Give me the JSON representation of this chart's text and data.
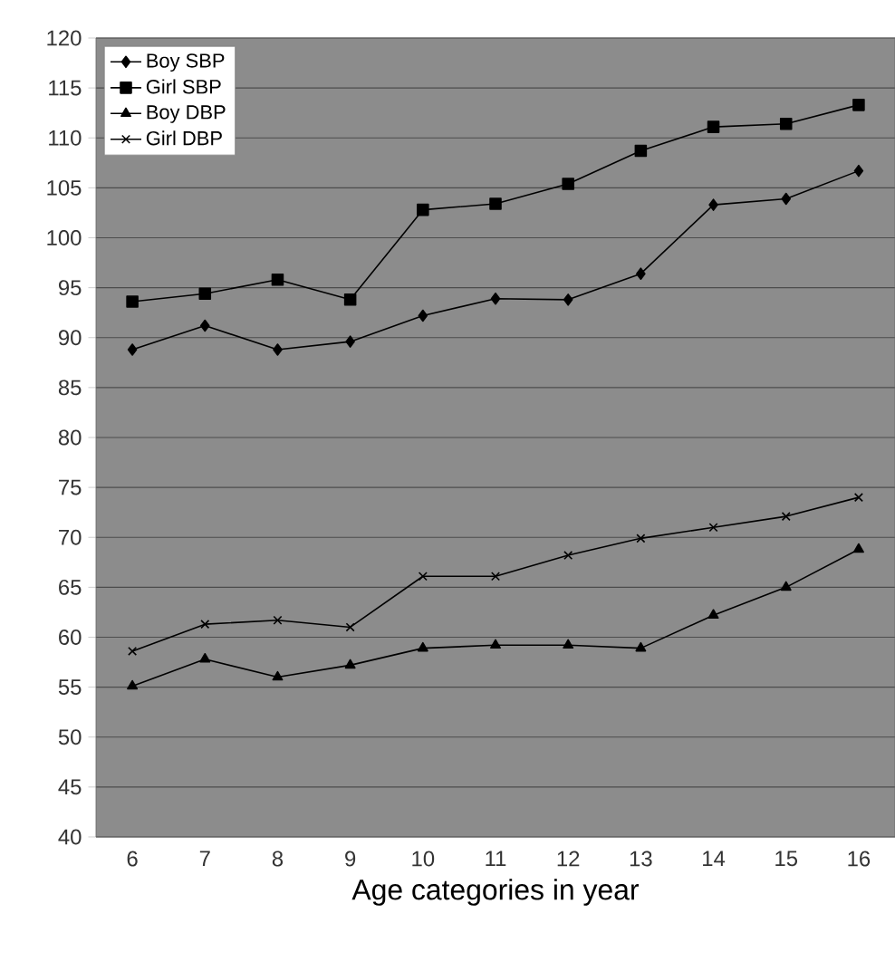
{
  "chart_data": {
    "type": "line",
    "xlabel": "Age categories in year",
    "categories": [
      "6",
      "7",
      "8",
      "9",
      "10",
      "11",
      "12",
      "13",
      "14",
      "15",
      "16"
    ],
    "series": [
      {
        "name": "Boy SBP",
        "color": "#000000",
        "marker": "diamond",
        "values": [
          88.8,
          91.2,
          88.8,
          89.6,
          92.2,
          93.9,
          93.8,
          96.4,
          103.3,
          103.9,
          106.7
        ]
      },
      {
        "name": "Girl SBP",
        "color": "#000000",
        "marker": "square",
        "values": [
          93.6,
          94.4,
          95.8,
          93.8,
          102.8,
          103.4,
          105.4,
          108.7,
          111.1,
          111.4,
          113.3
        ]
      },
      {
        "name": "Boy DBP",
        "color": "#000000",
        "marker": "triangle",
        "values": [
          55.1,
          57.8,
          56.0,
          57.2,
          58.9,
          59.2,
          59.2,
          58.9,
          62.2,
          65.0,
          68.8
        ]
      },
      {
        "name": "Girl DBP",
        "color": "#000000",
        "marker": "cross",
        "values": [
          58.6,
          61.3,
          61.7,
          61.0,
          66.1,
          66.1,
          68.2,
          69.9,
          71.0,
          72.1,
          74.0
        ]
      }
    ],
    "ylim": [
      40,
      120
    ],
    "yticks": [
      40,
      45,
      50,
      55,
      60,
      65,
      70,
      75,
      80,
      85,
      90,
      95,
      100,
      105,
      110,
      115,
      120
    ],
    "grid": "y",
    "legend": "top left"
  }
}
